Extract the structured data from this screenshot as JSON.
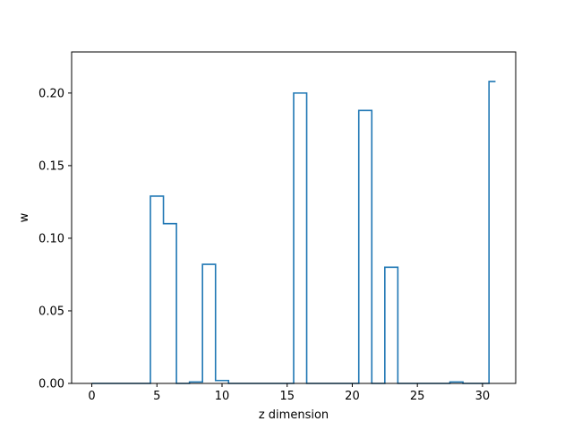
{
  "chart_data": {
    "type": "line",
    "drawstyle": "steps-mid",
    "xlabel": "z dimension",
    "ylabel": "w",
    "xlim": [
      -1.55,
      32.55
    ],
    "ylim": [
      0,
      0.2283
    ],
    "xticks": [
      0,
      5,
      10,
      15,
      20,
      25,
      30
    ],
    "xtick_labels": [
      "0",
      "5",
      "10",
      "15",
      "20",
      "25",
      "30"
    ],
    "yticks": [
      0.0,
      0.05,
      0.1,
      0.15,
      0.2
    ],
    "ytick_labels": [
      "0.00",
      "0.05",
      "0.10",
      "0.15",
      "0.20"
    ],
    "grid": false,
    "series": [
      {
        "color": "#1f77b4",
        "x": [
          0,
          1,
          2,
          3,
          4,
          5,
          6,
          7,
          8,
          9,
          10,
          11,
          12,
          13,
          14,
          15,
          16,
          17,
          18,
          19,
          20,
          21,
          22,
          23,
          24,
          25,
          26,
          27,
          28,
          29,
          30,
          31
        ],
        "y": [
          0,
          0,
          0,
          0,
          0,
          0.129,
          0.11,
          0,
          0.001,
          0.082,
          0.002,
          0,
          0,
          0,
          0,
          0,
          0.2,
          0,
          0,
          0,
          0,
          0.188,
          0,
          0.08,
          0,
          0,
          0,
          0,
          0.001,
          0,
          0,
          0.208
        ]
      }
    ]
  }
}
